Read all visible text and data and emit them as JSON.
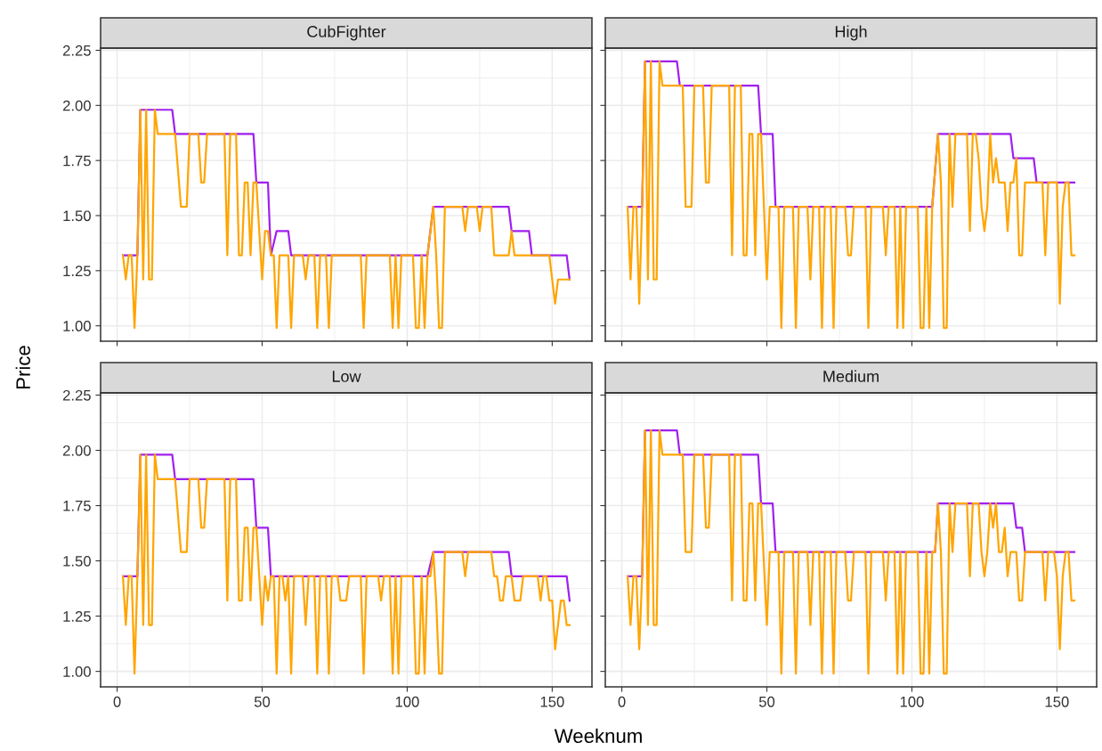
{
  "chart_data": [
    {
      "type": "line",
      "title": "CubFighter",
      "xlabel": "Weeknum",
      "ylabel": "Price",
      "xlim": [
        -5.7,
        163.7
      ],
      "xticks": [
        0,
        50,
        100,
        150
      ],
      "ylim": [
        0.93,
        2.26
      ],
      "yticks": [
        {
          "value": 1,
          "label": "1.00"
        },
        1.25,
        {
          "value": 1.5,
          "label": "1.50"
        },
        1.75,
        {
          "value": 2,
          "label": "2.00"
        },
        2.25
      ],
      "grid": true,
      "tick_labels": "y",
      "line_style": "solid",
      "marker": "none",
      "series": [
        {
          "color": "#a020f0",
          "x": [
            2,
            7,
            8,
            19,
            20,
            47,
            48,
            52,
            53,
            55,
            59,
            60,
            107,
            109,
            135,
            136,
            142,
            143,
            155,
            156
          ],
          "values": [
            1.32,
            1.32,
            1.98,
            1.98,
            1.87,
            1.87,
            1.65,
            1.65,
            1.32,
            1.43,
            1.43,
            1.32,
            1.32,
            1.54,
            1.54,
            1.43,
            1.43,
            1.32,
            1.32,
            1.21
          ]
        },
        {
          "color": "#ffa500",
          "x": [
            2,
            3,
            4,
            5,
            6,
            7,
            8,
            9,
            10,
            11,
            12,
            13,
            14,
            20,
            22,
            24,
            25,
            28,
            29,
            30,
            31,
            37,
            38,
            39,
            41,
            42,
            43,
            44,
            45,
            46,
            47,
            48,
            50,
            51,
            52,
            53,
            54,
            55,
            56,
            59,
            60,
            61,
            64,
            65,
            66,
            68,
            69,
            70,
            72,
            73,
            74,
            84,
            85,
            86,
            94,
            95,
            96,
            97,
            98,
            102,
            103,
            104,
            105,
            106,
            107,
            109,
            110,
            111,
            112,
            113,
            119,
            120,
            121,
            124,
            125,
            126,
            129,
            130,
            135,
            136,
            137,
            149,
            151,
            152,
            156
          ],
          "values": [
            1.32,
            1.21,
            1.32,
            1.32,
            0.99,
            1.32,
            1.98,
            1.21,
            1.98,
            1.21,
            1.21,
            1.98,
            1.87,
            1.87,
            1.54,
            1.54,
            1.87,
            1.87,
            1.65,
            1.65,
            1.87,
            1.87,
            1.32,
            1.87,
            1.87,
            1.32,
            1.32,
            1.65,
            1.65,
            1.32,
            1.65,
            1.65,
            1.21,
            1.43,
            1.43,
            1.32,
            1.32,
            0.99,
            1.32,
            1.32,
            0.99,
            1.32,
            1.32,
            1.21,
            1.32,
            1.32,
            0.99,
            1.32,
            1.32,
            0.99,
            1.32,
            1.32,
            0.99,
            1.32,
            1.32,
            0.99,
            1.32,
            0.99,
            1.32,
            1.32,
            0.99,
            0.99,
            1.32,
            0.99,
            1.32,
            1.54,
            1.32,
            0.99,
            0.99,
            1.54,
            1.54,
            1.43,
            1.54,
            1.54,
            1.43,
            1.54,
            1.54,
            1.32,
            1.32,
            1.43,
            1.32,
            1.32,
            1.1,
            1.21,
            1.21
          ]
        }
      ]
    },
    {
      "type": "line",
      "title": "High",
      "xlim": [
        -5.7,
        163.7
      ],
      "xticks": [
        0,
        50,
        100,
        150
      ],
      "ylim": [
        0.93,
        2.26
      ],
      "yticks": [
        1,
        1.25,
        1.5,
        1.75,
        2,
        2.25
      ],
      "grid": true,
      "tick_labels": false,
      "line_style": "solid",
      "marker": "none",
      "series": [
        {
          "color": "#a020f0",
          "x": [
            2,
            7,
            8,
            19,
            20,
            47,
            48,
            52,
            53,
            107,
            109,
            134,
            135,
            142,
            143,
            156
          ],
          "values": [
            1.54,
            1.54,
            2.2,
            2.2,
            2.09,
            2.09,
            1.87,
            1.87,
            1.54,
            1.54,
            1.87,
            1.87,
            1.76,
            1.76,
            1.65,
            1.65
          ]
        },
        {
          "color": "#ffa500",
          "x": [
            2,
            3,
            4,
            5,
            6,
            7,
            8,
            9,
            10,
            11,
            12,
            13,
            14,
            21,
            22,
            24,
            25,
            28,
            29,
            30,
            31,
            37,
            38,
            39,
            41,
            42,
            43,
            44,
            45,
            46,
            47,
            48,
            50,
            51,
            54,
            55,
            56,
            59,
            60,
            61,
            64,
            65,
            66,
            68,
            69,
            70,
            72,
            73,
            74,
            77,
            78,
            79,
            80,
            84,
            85,
            86,
            90,
            91,
            92,
            94,
            95,
            96,
            97,
            98,
            102,
            103,
            104,
            105,
            106,
            107,
            109,
            110,
            111,
            112,
            113,
            114,
            115,
            119,
            120,
            121,
            122,
            123,
            124,
            125,
            126,
            127,
            128,
            129,
            130,
            132,
            133,
            134,
            135,
            136,
            137,
            138,
            139,
            145,
            146,
            147,
            150,
            151,
            152,
            153,
            154,
            155,
            156
          ],
          "values": [
            1.54,
            1.21,
            1.54,
            1.54,
            1.1,
            1.54,
            2.2,
            1.21,
            2.2,
            1.21,
            1.21,
            2.2,
            2.09,
            2.09,
            1.54,
            1.54,
            2.09,
            2.09,
            1.65,
            1.65,
            2.09,
            2.09,
            1.32,
            2.09,
            2.09,
            1.32,
            1.32,
            1.87,
            1.87,
            1.32,
            1.87,
            1.87,
            1.21,
            1.54,
            1.54,
            0.99,
            1.54,
            1.54,
            0.99,
            1.54,
            1.54,
            1.21,
            1.54,
            1.54,
            0.99,
            1.54,
            1.54,
            0.99,
            1.54,
            1.54,
            1.32,
            1.32,
            1.54,
            1.54,
            0.99,
            1.54,
            1.54,
            1.32,
            1.54,
            1.54,
            0.99,
            1.54,
            0.99,
            1.54,
            1.54,
            0.99,
            0.99,
            1.54,
            0.99,
            1.54,
            1.87,
            1.65,
            0.99,
            0.99,
            1.87,
            1.54,
            1.87,
            1.87,
            1.43,
            1.87,
            1.87,
            1.76,
            1.54,
            1.43,
            1.54,
            1.87,
            1.65,
            1.76,
            1.65,
            1.65,
            1.43,
            1.65,
            1.65,
            1.76,
            1.32,
            1.32,
            1.65,
            1.65,
            1.32,
            1.65,
            1.65,
            1.1,
            1.54,
            1.65,
            1.65,
            1.32,
            1.32
          ]
        }
      ]
    },
    {
      "type": "line",
      "title": "Low",
      "xlim": [
        -5.7,
        163.7
      ],
      "xticks": [
        0,
        50,
        100,
        150
      ],
      "ylim": [
        0.93,
        2.26
      ],
      "yticks": [
        {
          "value": 1,
          "label": "1.00"
        },
        1.25,
        {
          "value": 1.5,
          "label": "1.50"
        },
        1.75,
        {
          "value": 2,
          "label": "2.00"
        },
        2.25
      ],
      "grid": true,
      "line_style": "solid",
      "marker": "none",
      "series": [
        {
          "color": "#a020f0",
          "x": [
            2,
            7,
            8,
            19,
            20,
            47,
            48,
            52,
            53,
            107,
            109,
            135,
            136,
            155,
            156
          ],
          "values": [
            1.43,
            1.43,
            1.98,
            1.98,
            1.87,
            1.87,
            1.65,
            1.65,
            1.43,
            1.43,
            1.54,
            1.54,
            1.43,
            1.43,
            1.32
          ]
        },
        {
          "color": "#ffa500",
          "x": [
            2,
            3,
            4,
            5,
            6,
            7,
            8,
            9,
            10,
            11,
            12,
            13,
            14,
            20,
            22,
            24,
            25,
            28,
            29,
            30,
            31,
            37,
            38,
            39,
            41,
            42,
            43,
            44,
            45,
            46,
            47,
            48,
            50,
            51,
            52,
            53,
            54,
            55,
            56,
            57,
            58,
            59,
            60,
            61,
            64,
            65,
            66,
            68,
            69,
            70,
            72,
            73,
            74,
            76,
            77,
            79,
            80,
            84,
            85,
            86,
            90,
            91,
            92,
            94,
            95,
            96,
            97,
            98,
            102,
            103,
            104,
            105,
            106,
            107,
            108,
            109,
            110,
            111,
            112,
            113,
            119,
            120,
            121,
            129,
            130,
            131,
            132,
            133,
            134,
            136,
            137,
            139,
            140,
            145,
            146,
            147,
            148,
            149,
            150,
            151,
            153,
            154,
            155,
            156
          ],
          "values": [
            1.43,
            1.21,
            1.43,
            1.43,
            0.99,
            1.43,
            1.98,
            1.21,
            1.98,
            1.21,
            1.21,
            1.98,
            1.87,
            1.87,
            1.54,
            1.54,
            1.87,
            1.87,
            1.65,
            1.65,
            1.87,
            1.87,
            1.32,
            1.87,
            1.87,
            1.32,
            1.32,
            1.65,
            1.65,
            1.32,
            1.65,
            1.65,
            1.21,
            1.43,
            1.32,
            1.43,
            1.43,
            0.99,
            1.43,
            1.43,
            1.32,
            1.43,
            0.99,
            1.43,
            1.43,
            1.21,
            1.43,
            1.43,
            0.99,
            1.43,
            1.43,
            0.99,
            1.43,
            1.43,
            1.32,
            1.32,
            1.43,
            1.43,
            0.99,
            1.43,
            1.43,
            1.32,
            1.43,
            1.43,
            0.99,
            1.43,
            0.99,
            1.43,
            1.43,
            0.99,
            0.99,
            1.43,
            0.99,
            1.43,
            1.43,
            1.54,
            1.32,
            0.99,
            0.99,
            1.54,
            1.54,
            1.43,
            1.54,
            1.54,
            1.43,
            1.43,
            1.32,
            1.32,
            1.43,
            1.43,
            1.32,
            1.32,
            1.43,
            1.43,
            1.32,
            1.43,
            1.43,
            1.32,
            1.32,
            1.1,
            1.32,
            1.32,
            1.21,
            1.21
          ]
        }
      ]
    },
    {
      "type": "line",
      "title": "Medium",
      "xlim": [
        -5.7,
        163.7
      ],
      "xticks": [
        0,
        50,
        100,
        150
      ],
      "ylim": [
        0.93,
        2.26
      ],
      "yticks": [
        1,
        1.25,
        1.5,
        1.75,
        2,
        2.25
      ],
      "grid": true,
      "tick_labels": "x",
      "line_style": "solid",
      "marker": "none",
      "series": [
        {
          "color": "#a020f0",
          "x": [
            2,
            7,
            8,
            19,
            20,
            47,
            48,
            52,
            53,
            108,
            109,
            135,
            136,
            138,
            139,
            156
          ],
          "values": [
            1.43,
            1.43,
            2.09,
            2.09,
            1.98,
            1.98,
            1.76,
            1.76,
            1.54,
            1.54,
            1.76,
            1.76,
            1.65,
            1.65,
            1.54,
            1.54
          ]
        },
        {
          "color": "#ffa500",
          "x": [
            2,
            3,
            4,
            5,
            6,
            7,
            8,
            9,
            10,
            11,
            12,
            13,
            14,
            21,
            22,
            24,
            25,
            28,
            29,
            30,
            31,
            37,
            38,
            39,
            41,
            42,
            43,
            44,
            45,
            46,
            47,
            48,
            50,
            51,
            54,
            55,
            56,
            59,
            60,
            61,
            64,
            65,
            66,
            68,
            69,
            70,
            72,
            73,
            74,
            77,
            78,
            79,
            80,
            84,
            85,
            86,
            90,
            91,
            92,
            94,
            95,
            96,
            97,
            98,
            102,
            103,
            104,
            105,
            106,
            107,
            108,
            109,
            110,
            111,
            112,
            113,
            114,
            115,
            119,
            120,
            121,
            123,
            124,
            125,
            126,
            127,
            128,
            129,
            130,
            131,
            132,
            133,
            134,
            136,
            137,
            138,
            139,
            145,
            146,
            147,
            149,
            150,
            151,
            152,
            153,
            154,
            155,
            156
          ],
          "values": [
            1.43,
            1.21,
            1.43,
            1.43,
            1.1,
            1.43,
            2.09,
            1.21,
            2.09,
            1.21,
            1.21,
            2.09,
            1.98,
            1.98,
            1.54,
            1.54,
            1.98,
            1.98,
            1.65,
            1.65,
            1.98,
            1.98,
            1.32,
            1.98,
            1.98,
            1.32,
            1.32,
            1.76,
            1.76,
            1.32,
            1.76,
            1.76,
            1.21,
            1.54,
            1.54,
            0.99,
            1.54,
            1.54,
            0.99,
            1.54,
            1.54,
            1.21,
            1.54,
            1.54,
            0.99,
            1.54,
            1.54,
            0.99,
            1.54,
            1.54,
            1.32,
            1.32,
            1.54,
            1.54,
            0.99,
            1.54,
            1.54,
            1.32,
            1.54,
            1.54,
            0.99,
            1.54,
            0.99,
            1.54,
            1.54,
            0.99,
            0.99,
            1.54,
            0.99,
            1.54,
            1.54,
            1.76,
            1.54,
            0.99,
            0.99,
            1.76,
            1.54,
            1.76,
            1.76,
            1.43,
            1.76,
            1.76,
            1.54,
            1.43,
            1.54,
            1.76,
            1.65,
            1.76,
            1.54,
            1.54,
            1.65,
            1.43,
            1.54,
            1.54,
            1.32,
            1.32,
            1.54,
            1.54,
            1.32,
            1.54,
            1.54,
            1.43,
            1.1,
            1.43,
            1.54,
            1.54,
            1.32,
            1.32
          ]
        }
      ]
    }
  ]
}
